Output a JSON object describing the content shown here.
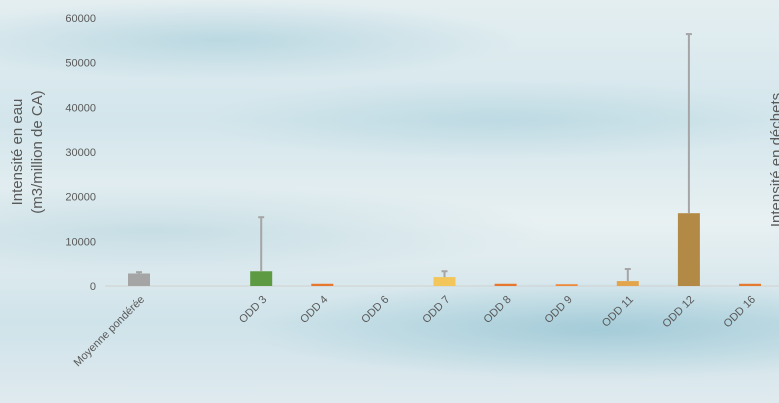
{
  "chart_data": {
    "type": "bar",
    "y_label": [
      "Intensité en eau",
      "(m3/million de CA)"
    ],
    "y2_label": "Intensité en déchets",
    "categories": [
      "Moyenne pondérée",
      null,
      "ODD 3",
      "ODD 4",
      "ODD 6",
      "ODD 7",
      "ODD 8",
      "ODD 9",
      "ODD 11",
      "ODD 12",
      "ODD 16"
    ],
    "values": [
      2800,
      null,
      3300,
      500,
      0,
      2000,
      500,
      400,
      1100,
      16300,
      500
    ],
    "errors": [
      300,
      null,
      12100,
      null,
      null,
      1300,
      null,
      null,
      2700,
      40100,
      null
    ],
    "colors": [
      "#a5a5a5",
      null,
      "#5e9a42",
      "#e8772e",
      "#e8772e",
      "#f2c65a",
      "#e8772e",
      "#ee8a3a",
      "#e3a54c",
      "#b38a45",
      "#e37b31"
    ],
    "error_color": "#a5a5a5",
    "ylim": [
      0,
      60000
    ],
    "yticks": [
      0,
      10000,
      20000,
      30000,
      40000,
      50000,
      60000
    ]
  }
}
